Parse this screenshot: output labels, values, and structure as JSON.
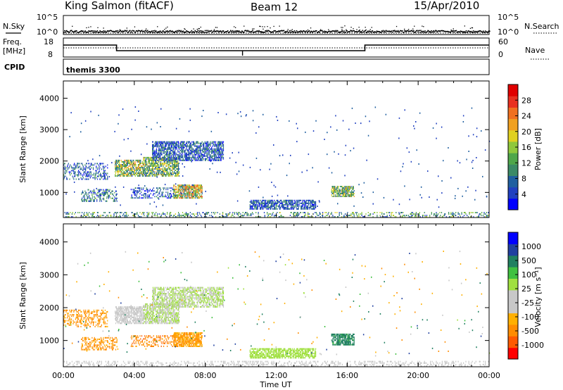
{
  "header": {
    "title": "King Salmon (fitACF)",
    "beam": "Beam 12",
    "date": "15/Apr/2010"
  },
  "meta_panel": {
    "nsky_label": "N.Sky",
    "nsky_ticks": [
      "10^5",
      "10^0"
    ],
    "nsearch_label": "N.Search",
    "nsearch_ticks": [
      "10^5",
      "10^0"
    ],
    "freq_label": "Freq.",
    "freq_unit": "[MHz]",
    "freq_ticks": [
      "18",
      "8"
    ],
    "nave_label": "Nave",
    "nave_ticks": [
      "60",
      "0"
    ],
    "cpid_label": "CPID",
    "cpid_value": "themis 3300"
  },
  "x_axis": {
    "title": "Time UT",
    "ticks": [
      "00:00",
      "04:00",
      "08:00",
      "12:00",
      "16:00",
      "20:00",
      "00:00"
    ]
  },
  "colors": {
    "power_scale": [
      "#0000ff",
      "#2040c0",
      "#1f5fa0",
      "#3b8a66",
      "#4fa64a",
      "#8fc83c",
      "#e0d020",
      "#f0a020",
      "#f07020",
      "#e83020",
      "#e00000"
    ],
    "velocity_scale": [
      "#ff0000",
      "#ff5a00",
      "#ff8c00",
      "#ffb000",
      "#c8c8c8",
      "#c8c8c8",
      "#a0e040",
      "#40c040",
      "#208060",
      "#2040a0",
      "#0000ff"
    ]
  },
  "chart_data": [
    {
      "type": "heatmap",
      "panel": "power",
      "ylabel": "Slant Range [km]",
      "yticks": [
        "1000",
        "2000",
        "3000",
        "4000"
      ],
      "ylim": [
        200,
        4550
      ],
      "xlim_hours": [
        0,
        24
      ],
      "colorbar": {
        "label": "Power [dB]",
        "ticks": [
          "4",
          "8",
          "12",
          "16",
          "20",
          "24",
          "28"
        ],
        "range": [
          0,
          30
        ]
      },
      "features": [
        {
          "t0": 1.0,
          "t1": 3.0,
          "r0": 700,
          "r1": 1100,
          "value": 8,
          "density": 0.35
        },
        {
          "t0": 2.9,
          "t1": 4.5,
          "r0": 1500,
          "r1": 2000,
          "value": 14,
          "density": 0.6
        },
        {
          "t0": 4.5,
          "t1": 6.5,
          "r0": 1500,
          "r1": 2100,
          "value": 12,
          "density": 0.6
        },
        {
          "t0": 5.0,
          "t1": 9.0,
          "r0": 2000,
          "r1": 2600,
          "value": 6,
          "density": 0.55
        },
        {
          "t0": 6.2,
          "t1": 7.8,
          "r0": 800,
          "r1": 1250,
          "value": 16,
          "density": 0.7
        },
        {
          "t0": 3.8,
          "t1": 6.2,
          "r0": 800,
          "r1": 1150,
          "value": 6,
          "density": 0.25
        },
        {
          "t0": 0.0,
          "t1": 2.5,
          "r0": 1400,
          "r1": 1900,
          "value": 6,
          "density": 0.3
        },
        {
          "t0": 10.5,
          "t1": 14.2,
          "r0": 450,
          "r1": 750,
          "value": 6,
          "density": 0.6
        },
        {
          "t0": 15.1,
          "t1": 16.4,
          "r0": 850,
          "r1": 1200,
          "value": 13,
          "density": 0.65
        },
        {
          "t0": 0.0,
          "t1": 24.0,
          "r0": 200,
          "r1": 380,
          "value": 10,
          "density": 0.22
        }
      ]
    },
    {
      "type": "heatmap",
      "panel": "velocity",
      "ylabel": "Slant Range [km]",
      "yticks": [
        "1000",
        "2000",
        "3000",
        "4000"
      ],
      "ylim": [
        200,
        4550
      ],
      "xlim_hours": [
        0,
        24
      ],
      "colorbar": {
        "label": "Velocity [m s⁻¹]",
        "ticks": [
          "-1000",
          "-500",
          "-100",
          "-25",
          "25",
          "100",
          "500",
          "1000"
        ]
      },
      "features": [
        {
          "t0": 1.0,
          "t1": 3.0,
          "r0": 700,
          "r1": 1100,
          "value": -300,
          "density": 0.35
        },
        {
          "t0": 2.9,
          "t1": 4.5,
          "r0": 1500,
          "r1": 2000,
          "value": -40,
          "density": 0.6
        },
        {
          "t0": 4.5,
          "t1": 6.5,
          "r0": 1500,
          "r1": 2100,
          "value": 0,
          "density": 0.6
        },
        {
          "t0": 5.0,
          "t1": 9.0,
          "r0": 2000,
          "r1": 2600,
          "value": 0,
          "density": 0.55
        },
        {
          "t0": 6.2,
          "t1": 7.8,
          "r0": 800,
          "r1": 1250,
          "value": -250,
          "density": 0.7
        },
        {
          "t0": 3.8,
          "t1": 6.2,
          "r0": 800,
          "r1": 1150,
          "value": -400,
          "density": 0.25
        },
        {
          "t0": 0.0,
          "t1": 2.5,
          "r0": 1400,
          "r1": 1900,
          "value": -300,
          "density": 0.3
        },
        {
          "t0": 10.5,
          "t1": 14.2,
          "r0": 450,
          "r1": 750,
          "value": 10,
          "density": 0.6
        },
        {
          "t0": 15.1,
          "t1": 16.4,
          "r0": 850,
          "r1": 1200,
          "value": 150,
          "density": 0.65
        },
        {
          "t0": 0.0,
          "t1": 24.0,
          "r0": 200,
          "r1": 380,
          "value": -50,
          "density": 0.22
        }
      ]
    }
  ]
}
